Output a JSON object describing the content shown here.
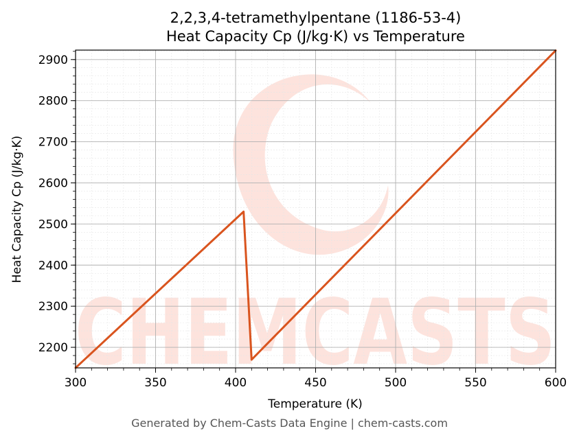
{
  "chart_data": {
    "type": "line",
    "title": "2,2,3,4-tetramethylpentane (1186-53-4)",
    "subtitle": "Heat Capacity Cp (J/kg·K) vs Temperature",
    "xlabel": "Temperature (K)",
    "ylabel": "Heat Capacity Cp (J/kg·K)",
    "xlim": [
      300,
      600
    ],
    "ylim": [
      2150,
      2923
    ],
    "xticks": [
      300,
      350,
      400,
      450,
      500,
      550,
      600
    ],
    "yticks": [
      2200,
      2300,
      2400,
      2500,
      2600,
      2700,
      2800,
      2900
    ],
    "grid": true,
    "series": [
      {
        "color": "#d9541e",
        "x": [
          300,
          405,
          410,
          600
        ],
        "y": [
          2150,
          2530,
          2170,
          2922
        ]
      }
    ]
  },
  "watermark": {
    "text": "CHEMCASTS"
  },
  "footer": "Generated by Chem-Casts Data Engine | chem-casts.com"
}
